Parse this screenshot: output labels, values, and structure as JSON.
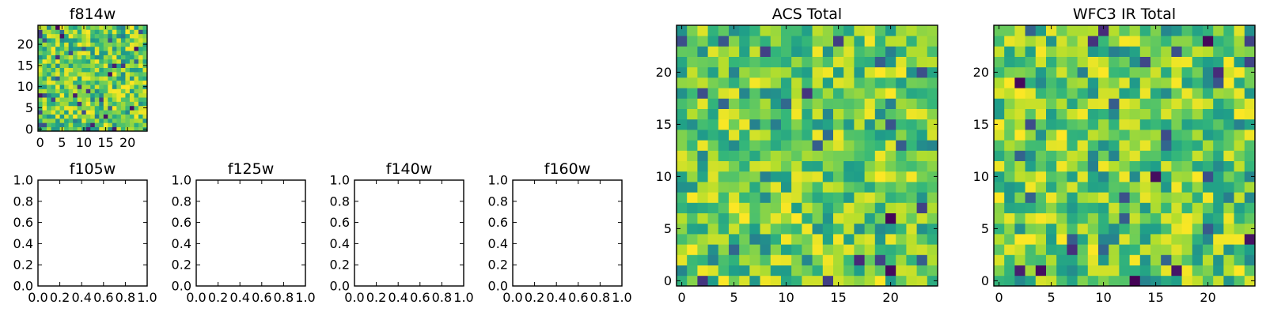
{
  "chart_data": [
    {
      "type": "heatmap",
      "id": "f814w",
      "title": "f814w",
      "xlabel": "",
      "ylabel": "",
      "grid_size": 25,
      "xlim": [
        -0.5,
        24.5
      ],
      "ylim": [
        -0.5,
        24.5
      ],
      "xticks": [
        0,
        5,
        10,
        15,
        20
      ],
      "yticks": [
        0,
        5,
        10,
        15,
        20
      ],
      "xtick_labels": [
        "0",
        "5",
        "10",
        "15",
        "20"
      ],
      "ytick_labels": [
        "0",
        "5",
        "10",
        "15",
        "20"
      ],
      "colormap": "viridis",
      "seed": 11
    },
    {
      "type": "empty",
      "id": "f105w",
      "title": "f105w",
      "xlim": [
        0,
        1
      ],
      "ylim": [
        0,
        1
      ],
      "xticks": [
        0,
        0.2,
        0.4,
        0.6,
        0.8,
        1.0
      ],
      "yticks": [
        0,
        0.2,
        0.4,
        0.6,
        0.8,
        1.0
      ],
      "xtick_labels": [
        "0.0",
        "0.2",
        "0.4",
        "0.6",
        "0.8",
        "1.0"
      ],
      "ytick_labels": [
        "0.0",
        "0.2",
        "0.4",
        "0.6",
        "0.8",
        "1.0"
      ]
    },
    {
      "type": "empty",
      "id": "f125w",
      "title": "f125w",
      "xlim": [
        0,
        1
      ],
      "ylim": [
        0,
        1
      ],
      "xticks": [
        0,
        0.2,
        0.4,
        0.6,
        0.8,
        1.0
      ],
      "yticks": [
        0,
        0.2,
        0.4,
        0.6,
        0.8,
        1.0
      ],
      "xtick_labels": [
        "0.0",
        "0.2",
        "0.4",
        "0.6",
        "0.8",
        "1.0"
      ],
      "ytick_labels": [
        "0.0",
        "0.2",
        "0.4",
        "0.6",
        "0.8",
        "1.0"
      ]
    },
    {
      "type": "empty",
      "id": "f140w",
      "title": "f140w",
      "xlim": [
        0,
        1
      ],
      "ylim": [
        0,
        1
      ],
      "xticks": [
        0,
        0.2,
        0.4,
        0.6,
        0.8,
        1.0
      ],
      "yticks": [
        0,
        0.2,
        0.4,
        0.6,
        0.8,
        1.0
      ],
      "xtick_labels": [
        "0.0",
        "0.2",
        "0.4",
        "0.6",
        "0.8",
        "1.0"
      ],
      "ytick_labels": [
        "0.0",
        "0.2",
        "0.4",
        "0.6",
        "0.8",
        "1.0"
      ]
    },
    {
      "type": "empty",
      "id": "f160w",
      "title": "f160w",
      "xlim": [
        0,
        1
      ],
      "ylim": [
        0,
        1
      ],
      "xticks": [
        0,
        0.2,
        0.4,
        0.6,
        0.8,
        1.0
      ],
      "yticks": [
        0,
        0.2,
        0.4,
        0.6,
        0.8,
        1.0
      ],
      "xtick_labels": [
        "0.0",
        "0.2",
        "0.4",
        "0.6",
        "0.8",
        "1.0"
      ],
      "ytick_labels": [
        "0.0",
        "0.2",
        "0.4",
        "0.6",
        "0.8",
        "1.0"
      ]
    },
    {
      "type": "heatmap",
      "id": "acs-total",
      "title": "ACS Total",
      "grid_size": 25,
      "xlim": [
        -0.5,
        24.5
      ],
      "ylim": [
        -0.5,
        24.5
      ],
      "xticks": [
        0,
        5,
        10,
        15,
        20
      ],
      "yticks": [
        0,
        5,
        10,
        15,
        20
      ],
      "xtick_labels": [
        "0",
        "5",
        "10",
        "15",
        "20"
      ],
      "ytick_labels": [
        "0",
        "5",
        "10",
        "15",
        "20"
      ],
      "colormap": "viridis",
      "seed": 42
    },
    {
      "type": "heatmap",
      "id": "wfc3-ir-total",
      "title": "WFC3 IR Total",
      "grid_size": 25,
      "xlim": [
        -0.5,
        24.5
      ],
      "ylim": [
        -0.5,
        24.5
      ],
      "xticks": [
        0,
        5,
        10,
        15,
        20
      ],
      "yticks": [
        0,
        5,
        10,
        15,
        20
      ],
      "xtick_labels": [
        "0",
        "5",
        "10",
        "15",
        "20"
      ],
      "ytick_labels": [
        "0",
        "5",
        "10",
        "15",
        "20"
      ],
      "colormap": "viridis",
      "seed": 97
    }
  ]
}
